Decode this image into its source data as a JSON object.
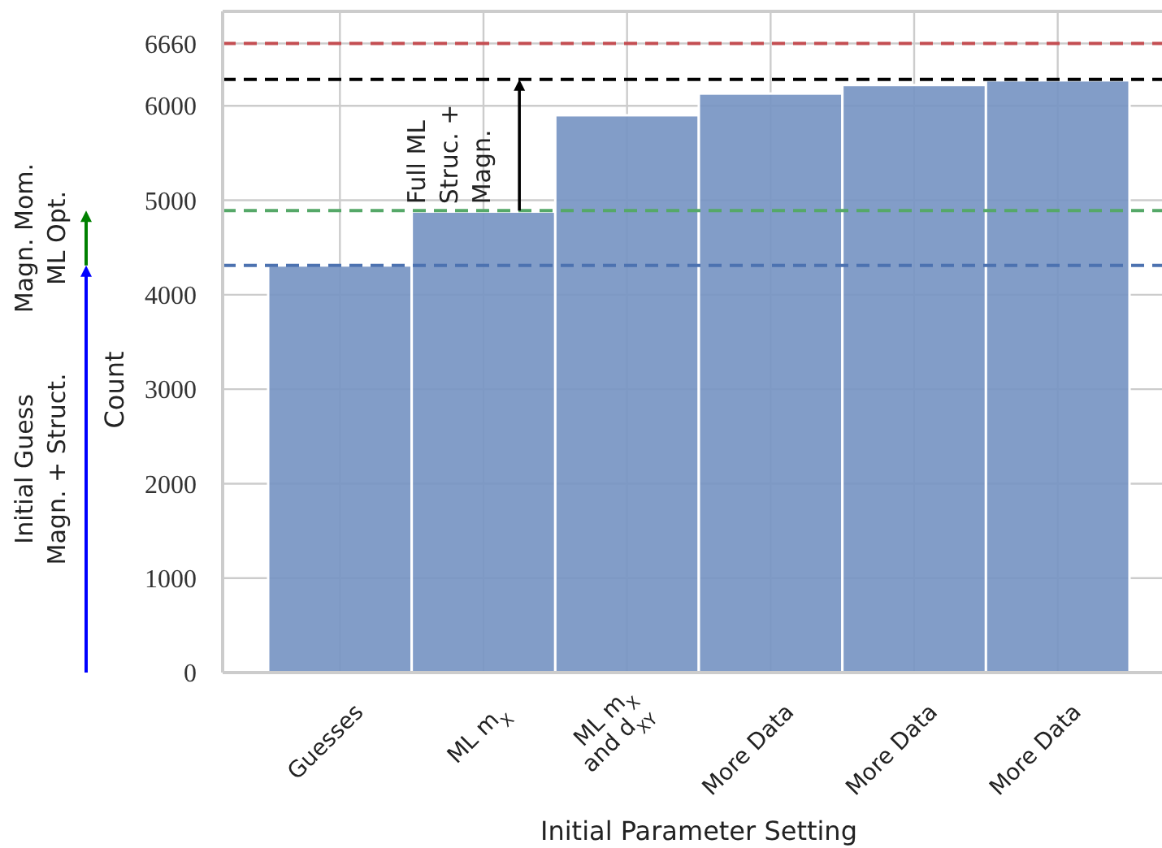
{
  "chart_data": {
    "type": "bar",
    "xlabel": "Initial Parameter Setting",
    "ylabel": "Count",
    "categories": [
      "Guesses",
      "ML m$_{X}$",
      "ML m$_{X}$\nand d$_{XY}$",
      "More Data",
      "More Data",
      "More Data"
    ],
    "values": [
      4310,
      4880,
      5900,
      6130,
      6220,
      6270
    ],
    "color": "#7795c3",
    "ylim": [
      0,
      7000
    ],
    "yticks": [
      0,
      1000,
      2000,
      3000,
      4000,
      5000,
      6000,
      6660
    ],
    "grid": true,
    "ref_lines": [
      {
        "axis": "y",
        "value": 4310,
        "color": "#4c72b0",
        "line_style": "dashed"
      },
      {
        "axis": "y",
        "value": 4890,
        "color": "#55a868",
        "line_style": "dashed"
      },
      {
        "axis": "y",
        "value": 6280,
        "color": "#000000",
        "line_style": "dashed"
      },
      {
        "axis": "y",
        "value": 6660,
        "color": "#c44e52",
        "line_style": "dashed"
      }
    ],
    "annotations": [
      "Initial Guess\nMagn. + Struct.",
      "Magn. Mom.\nML Opt.",
      "Full ML\nStruc. +\nMagn."
    ]
  }
}
